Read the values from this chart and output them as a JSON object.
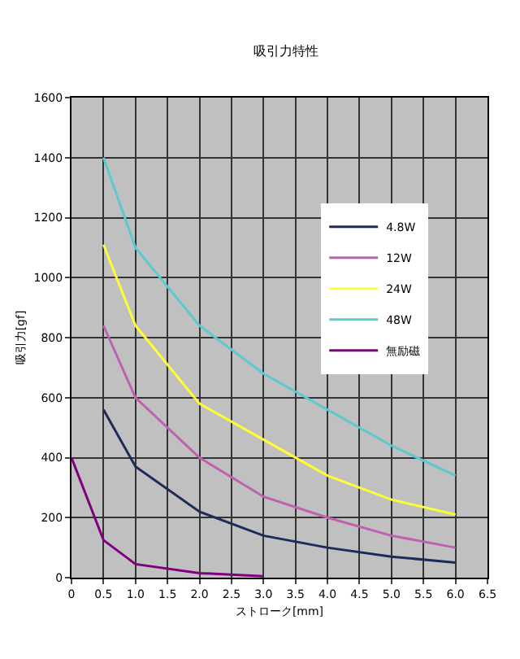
{
  "chart_data": {
    "type": "line",
    "title": "吸引力特性",
    "xlabel": "ストローク[mm]",
    "ylabel": "吸引力[gf]",
    "xlim": [
      0,
      6.5
    ],
    "xticks": [
      {
        "value": 0,
        "label": "0"
      },
      {
        "value": 0.5,
        "label": "0.5"
      },
      {
        "value": 1,
        "label": "1.0"
      },
      {
        "value": 1.5,
        "label": "1.5"
      },
      {
        "value": 2,
        "label": "2.0"
      },
      {
        "value": 2.5,
        "label": "2.5"
      },
      {
        "value": 3,
        "label": "3.0"
      },
      {
        "value": 3.5,
        "label": "3.5"
      },
      {
        "value": 4,
        "label": "4.0"
      },
      {
        "value": 4.5,
        "label": "4.5"
      },
      {
        "value": 5,
        "label": "5.0"
      },
      {
        "value": 5.5,
        "label": "5.5"
      },
      {
        "value": 6,
        "label": "6.0"
      },
      {
        "value": 6.5,
        "label": "6.5"
      }
    ],
    "ylim": [
      0,
      1600
    ],
    "yticks": [
      0,
      200,
      400,
      600,
      800,
      1000,
      1200,
      1400,
      1600
    ],
    "grid": true,
    "legend": "top right",
    "marker": "none",
    "line_style": "solid",
    "series": [
      {
        "name": "4.8W",
        "color": "#1f2a5c",
        "x": [
          0.5,
          1,
          2,
          3,
          4,
          5,
          6
        ],
        "values": [
          560,
          370,
          220,
          140,
          100,
          70,
          50
        ]
      },
      {
        "name": "12W",
        "color": "#c060b0",
        "x": [
          0.5,
          1,
          2,
          3,
          4,
          5,
          6
        ],
        "values": [
          840,
          600,
          400,
          270,
          200,
          140,
          100
        ]
      },
      {
        "name": "24W",
        "color": "#ffff33",
        "x": [
          0.5,
          1,
          2,
          3,
          4,
          5,
          6
        ],
        "values": [
          1110,
          840,
          580,
          460,
          340,
          260,
          210
        ]
      },
      {
        "name": "48W",
        "color": "#5cc8d0",
        "x": [
          0.5,
          1,
          2,
          3,
          4,
          5,
          6
        ],
        "values": [
          1400,
          1100,
          840,
          680,
          560,
          440,
          340
        ]
      },
      {
        "name": "無励磁",
        "color": "#800080",
        "x": [
          0,
          0.5,
          1,
          2,
          3
        ],
        "values": [
          400,
          125,
          45,
          15,
          5
        ]
      }
    ]
  }
}
